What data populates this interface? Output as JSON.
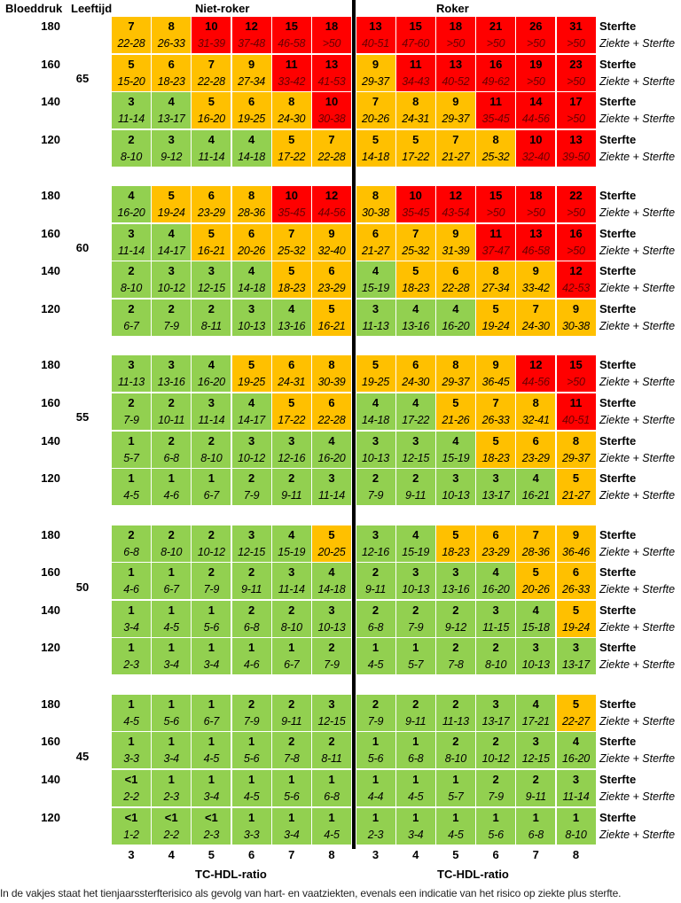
{
  "header": {
    "bloeddruk": "Bloeddruk",
    "leeftijd": "Leeftijd",
    "niet_roker": "Niet-roker",
    "roker": "Roker"
  },
  "row_labels": {
    "sterfte": "Sterfte",
    "ziekte_sterfte": "Ziekte + Sterfte"
  },
  "footnote": "In de vakjes staat het tienjaarssterfterisico als gevolg van hart- en vaatziekten, evenals een indicatie van het risico op ziekte plus sterfte.",
  "colors": {
    "green": "#92d050",
    "orange": "#ffc000",
    "red": "#ff0000",
    "divider": "#000000"
  },
  "chart_data": {
    "type": "heatmap",
    "xlabel": "TC-HDL-ratio",
    "x_ticks": [
      "3",
      "4",
      "5",
      "6",
      "7",
      "8"
    ],
    "groups": [
      "Niet-roker",
      "Roker"
    ],
    "color_scale": [
      {
        "range": "<5",
        "color": "#92d050"
      },
      {
        "range": "5-9",
        "color": "#ffc000"
      },
      {
        "range": ">=10",
        "color": "#ff0000"
      }
    ],
    "blocks": [
      {
        "age": "65",
        "rows": [
          {
            "bp": "180",
            "sterfte": [
              "7",
              "8",
              "10",
              "12",
              "15",
              "18",
              "13",
              "15",
              "18",
              "21",
              "26",
              "31"
            ],
            "ziekte_sterfte": [
              "22-28",
              "26-33",
              "31-39",
              "37-48",
              "46-58",
              ">50",
              "40-51",
              "47-60",
              ">50",
              ">50",
              ">50",
              ">50"
            ]
          },
          {
            "bp": "160",
            "sterfte": [
              "5",
              "6",
              "7",
              "9",
              "11",
              "13",
              "9",
              "11",
              "13",
              "16",
              "19",
              "23"
            ],
            "ziekte_sterfte": [
              "15-20",
              "18-23",
              "22-28",
              "27-34",
              "33-42",
              "41-53",
              "29-37",
              "34-43",
              "40-52",
              "49-62",
              ">50",
              ">50"
            ]
          },
          {
            "bp": "140",
            "sterfte": [
              "3",
              "4",
              "5",
              "6",
              "8",
              "10",
              "7",
              "8",
              "9",
              "11",
              "14",
              "17"
            ],
            "ziekte_sterfte": [
              "11-14",
              "13-17",
              "16-20",
              "19-25",
              "24-30",
              "30-38",
              "20-26",
              "24-31",
              "29-37",
              "35-45",
              "44-56",
              ">50"
            ]
          },
          {
            "bp": "120",
            "sterfte": [
              "2",
              "3",
              "4",
              "4",
              "5",
              "7",
              "5",
              "5",
              "7",
              "8",
              "10",
              "13"
            ],
            "ziekte_sterfte": [
              "8-10",
              "9-12",
              "11-14",
              "14-18",
              "17-22",
              "22-28",
              "14-18",
              "17-22",
              "21-27",
              "25-32",
              "32-40",
              "39-50"
            ]
          }
        ]
      },
      {
        "age": "60",
        "rows": [
          {
            "bp": "180",
            "sterfte": [
              "4",
              "5",
              "6",
              "8",
              "10",
              "12",
              "8",
              "10",
              "12",
              "15",
              "18",
              "22"
            ],
            "ziekte_sterfte": [
              "16-20",
              "19-24",
              "23-29",
              "28-36",
              "35-45",
              "44-56",
              "30-38",
              "35-45",
              "43-54",
              ">50",
              ">50",
              ">50"
            ]
          },
          {
            "bp": "160",
            "sterfte": [
              "3",
              "4",
              "5",
              "6",
              "7",
              "9",
              "6",
              "7",
              "9",
              "11",
              "13",
              "16"
            ],
            "ziekte_sterfte": [
              "11-14",
              "14-17",
              "16-21",
              "20-26",
              "25-32",
              "32-40",
              "21-27",
              "25-32",
              "31-39",
              "37-47",
              "46-58",
              ">50"
            ]
          },
          {
            "bp": "140",
            "sterfte": [
              "2",
              "3",
              "3",
              "4",
              "5",
              "6",
              "4",
              "5",
              "6",
              "8",
              "9",
              "12"
            ],
            "ziekte_sterfte": [
              "8-10",
              "10-12",
              "12-15",
              "14-18",
              "18-23",
              "23-29",
              "15-19",
              "18-23",
              "22-28",
              "27-34",
              "33-42",
              "42-53"
            ]
          },
          {
            "bp": "120",
            "sterfte": [
              "2",
              "2",
              "2",
              "3",
              "4",
              "5",
              "3",
              "4",
              "4",
              "5",
              "7",
              "9"
            ],
            "ziekte_sterfte": [
              "6-7",
              "7-9",
              "8-11",
              "10-13",
              "13-16",
              "16-21",
              "11-13",
              "13-16",
              "16-20",
              "19-24",
              "24-30",
              "30-38"
            ]
          }
        ]
      },
      {
        "age": "55",
        "rows": [
          {
            "bp": "180",
            "sterfte": [
              "3",
              "3",
              "4",
              "5",
              "6",
              "8",
              "5",
              "6",
              "8",
              "9",
              "12",
              "15"
            ],
            "ziekte_sterfte": [
              "11-13",
              "13-16",
              "16-20",
              "19-25",
              "24-31",
              "30-39",
              "19-25",
              "24-30",
              "29-37",
              "36-45",
              "44-56",
              ">50"
            ]
          },
          {
            "bp": "160",
            "sterfte": [
              "2",
              "2",
              "3",
              "4",
              "5",
              "6",
              "4",
              "4",
              "5",
              "7",
              "8",
              "11"
            ],
            "ziekte_sterfte": [
              "7-9",
              "10-11",
              "11-14",
              "14-17",
              "17-22",
              "22-28",
              "14-18",
              "17-22",
              "21-26",
              "26-33",
              "32-41",
              "40-51"
            ]
          },
          {
            "bp": "140",
            "sterfte": [
              "1",
              "2",
              "2",
              "3",
              "3",
              "4",
              "3",
              "3",
              "4",
              "5",
              "6",
              "8"
            ],
            "ziekte_sterfte": [
              "5-7",
              "6-8",
              "8-10",
              "10-12",
              "12-16",
              "16-20",
              "10-13",
              "12-15",
              "15-19",
              "18-23",
              "23-29",
              "29-37"
            ]
          },
          {
            "bp": "120",
            "sterfte": [
              "1",
              "1",
              "1",
              "2",
              "2",
              "3",
              "2",
              "2",
              "3",
              "3",
              "4",
              "5"
            ],
            "ziekte_sterfte": [
              "4-5",
              "4-6",
              "6-7",
              "7-9",
              "9-11",
              "11-14",
              "7-9",
              "9-11",
              "10-13",
              "13-17",
              "16-21",
              "21-27"
            ]
          }
        ]
      },
      {
        "age": "50",
        "rows": [
          {
            "bp": "180",
            "sterfte": [
              "2",
              "2",
              "2",
              "3",
              "4",
              "5",
              "3",
              "4",
              "5",
              "6",
              "7",
              "9"
            ],
            "ziekte_sterfte": [
              "6-8",
              "8-10",
              "10-12",
              "12-15",
              "15-19",
              "20-25",
              "12-16",
              "15-19",
              "18-23",
              "23-29",
              "28-36",
              "36-46"
            ]
          },
          {
            "bp": "160",
            "sterfte": [
              "1",
              "1",
              "2",
              "2",
              "3",
              "4",
              "2",
              "3",
              "3",
              "4",
              "5",
              "6"
            ],
            "ziekte_sterfte": [
              "4-6",
              "6-7",
              "7-9",
              "9-11",
              "11-14",
              "14-18",
              "9-11",
              "10-13",
              "13-16",
              "16-20",
              "20-26",
              "26-33"
            ]
          },
          {
            "bp": "140",
            "sterfte": [
              "1",
              "1",
              "1",
              "2",
              "2",
              "3",
              "2",
              "2",
              "2",
              "3",
              "4",
              "5"
            ],
            "ziekte_sterfte": [
              "3-4",
              "4-5",
              "5-6",
              "6-8",
              "8-10",
              "10-13",
              "6-8",
              "7-9",
              "9-12",
              "11-15",
              "15-18",
              "19-24"
            ]
          },
          {
            "bp": "120",
            "sterfte": [
              "1",
              "1",
              "1",
              "1",
              "1",
              "2",
              "1",
              "1",
              "2",
              "2",
              "3",
              "3"
            ],
            "ziekte_sterfte": [
              "2-3",
              "3-4",
              "3-4",
              "4-6",
              "6-7",
              "7-9",
              "4-5",
              "5-7",
              "7-8",
              "8-10",
              "10-13",
              "13-17"
            ]
          }
        ]
      },
      {
        "age": "45",
        "rows": [
          {
            "bp": "180",
            "sterfte": [
              "1",
              "1",
              "1",
              "2",
              "2",
              "3",
              "2",
              "2",
              "2",
              "3",
              "4",
              "5"
            ],
            "ziekte_sterfte": [
              "4-5",
              "5-6",
              "6-7",
              "7-9",
              "9-11",
              "12-15",
              "7-9",
              "9-11",
              "11-13",
              "13-17",
              "17-21",
              "22-27"
            ]
          },
          {
            "bp": "160",
            "sterfte": [
              "1",
              "1",
              "1",
              "1",
              "2",
              "2",
              "1",
              "1",
              "2",
              "2",
              "3",
              "4"
            ],
            "ziekte_sterfte": [
              "3-3",
              "3-4",
              "4-5",
              "5-6",
              "7-8",
              "8-11",
              "5-6",
              "6-8",
              "8-10",
              "10-12",
              "12-15",
              "16-20"
            ]
          },
          {
            "bp": "140",
            "sterfte": [
              "<1",
              "1",
              "1",
              "1",
              "1",
              "1",
              "1",
              "1",
              "1",
              "2",
              "2",
              "3"
            ],
            "ziekte_sterfte": [
              "2-2",
              "2-3",
              "3-4",
              "4-5",
              "5-6",
              "6-8",
              "4-4",
              "4-5",
              "5-7",
              "7-9",
              "9-11",
              "11-14"
            ]
          },
          {
            "bp": "120",
            "sterfte": [
              "<1",
              "<1",
              "<1",
              "1",
              "1",
              "1",
              "1",
              "1",
              "1",
              "1",
              "1",
              "1"
            ],
            "ziekte_sterfte": [
              "1-2",
              "2-2",
              "2-3",
              "3-3",
              "3-4",
              "4-5",
              "2-3",
              "3-4",
              "4-5",
              "5-6",
              "6-8",
              "8-10"
            ]
          }
        ]
      }
    ]
  }
}
